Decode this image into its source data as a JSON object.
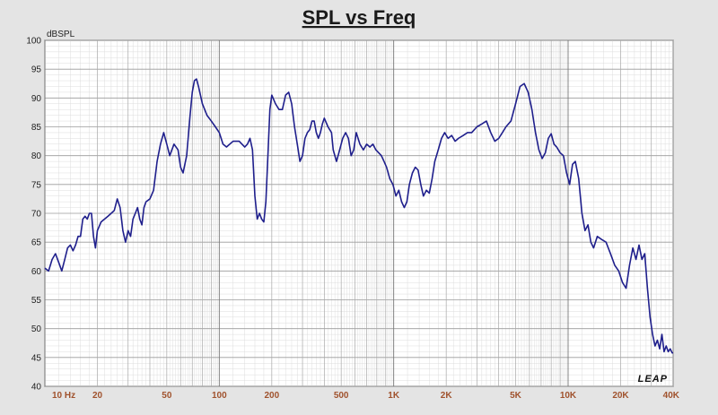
{
  "chart_data": {
    "type": "line",
    "title": "SPL vs Freq",
    "ylabel": "dBSPL",
    "xlabel": "",
    "x_scale": "log",
    "xlim": [
      10,
      40000
    ],
    "ylim": [
      40,
      100
    ],
    "y_ticks": [
      40,
      45,
      50,
      55,
      60,
      65,
      70,
      75,
      80,
      85,
      90,
      95,
      100
    ],
    "x_ticks": [
      {
        "value": 10,
        "label": "10  Hz"
      },
      {
        "value": 20,
        "label": "20"
      },
      {
        "value": 50,
        "label": "50"
      },
      {
        "value": 100,
        "label": "100"
      },
      {
        "value": 200,
        "label": "200"
      },
      {
        "value": 500,
        "label": "500"
      },
      {
        "value": 1000,
        "label": "1K"
      },
      {
        "value": 2000,
        "label": "2K"
      },
      {
        "value": 5000,
        "label": "5K"
      },
      {
        "value": 10000,
        "label": "10K"
      },
      {
        "value": 20000,
        "label": "20K"
      },
      {
        "value": 40000,
        "label": "40K"
      }
    ],
    "grid": true,
    "series": [
      {
        "color": "#1f1f8c",
        "points": [
          [
            10,
            60.5
          ],
          [
            10.5,
            60
          ],
          [
            11,
            62
          ],
          [
            11.5,
            63
          ],
          [
            12,
            61.5
          ],
          [
            12.5,
            60
          ],
          [
            13,
            62
          ],
          [
            13.5,
            64
          ],
          [
            14,
            64.5
          ],
          [
            14.5,
            63.5
          ],
          [
            15,
            64.5
          ],
          [
            15.5,
            66
          ],
          [
            16,
            66
          ],
          [
            16.5,
            69
          ],
          [
            17,
            69.5
          ],
          [
            17.5,
            69
          ],
          [
            18,
            70
          ],
          [
            18.5,
            70
          ],
          [
            19,
            66
          ],
          [
            19.5,
            64
          ],
          [
            20,
            67
          ],
          [
            21,
            68.5
          ],
          [
            22,
            69
          ],
          [
            23,
            69.5
          ],
          [
            24,
            70
          ],
          [
            25,
            70.5
          ],
          [
            26,
            72.5
          ],
          [
            27,
            71
          ],
          [
            28,
            67
          ],
          [
            29,
            65
          ],
          [
            30,
            67
          ],
          [
            31,
            66
          ],
          [
            32,
            69
          ],
          [
            33,
            70
          ],
          [
            34,
            71
          ],
          [
            35,
            69
          ],
          [
            36,
            68
          ],
          [
            37,
            71
          ],
          [
            38,
            72
          ],
          [
            40,
            72.5
          ],
          [
            42,
            74
          ],
          [
            44,
            79
          ],
          [
            46,
            82
          ],
          [
            48,
            84
          ],
          [
            50,
            82
          ],
          [
            52,
            80
          ],
          [
            55,
            82
          ],
          [
            58,
            81
          ],
          [
            60,
            78
          ],
          [
            62,
            77
          ],
          [
            65,
            80
          ],
          [
            68,
            87
          ],
          [
            70,
            91
          ],
          [
            72,
            93
          ],
          [
            74,
            93.3
          ],
          [
            76,
            92
          ],
          [
            80,
            89
          ],
          [
            85,
            87
          ],
          [
            90,
            86
          ],
          [
            95,
            85
          ],
          [
            100,
            84
          ],
          [
            105,
            82
          ],
          [
            110,
            81.5
          ],
          [
            120,
            82.5
          ],
          [
            130,
            82.5
          ],
          [
            140,
            81.5
          ],
          [
            145,
            82
          ],
          [
            150,
            83
          ],
          [
            155,
            81
          ],
          [
            160,
            73
          ],
          [
            165,
            69
          ],
          [
            170,
            70
          ],
          [
            175,
            69
          ],
          [
            180,
            68.5
          ],
          [
            185,
            72
          ],
          [
            190,
            80
          ],
          [
            195,
            88
          ],
          [
            200,
            90.5
          ],
          [
            210,
            89
          ],
          [
            220,
            88
          ],
          [
            230,
            88
          ],
          [
            240,
            90.5
          ],
          [
            250,
            91
          ],
          [
            260,
            89
          ],
          [
            270,
            85
          ],
          [
            280,
            82
          ],
          [
            290,
            79
          ],
          [
            300,
            80
          ],
          [
            310,
            83
          ],
          [
            320,
            84
          ],
          [
            330,
            84.5
          ],
          [
            340,
            86
          ],
          [
            350,
            86
          ],
          [
            360,
            84
          ],
          [
            370,
            83
          ],
          [
            380,
            84
          ],
          [
            390,
            85.5
          ],
          [
            400,
            86.5
          ],
          [
            420,
            85
          ],
          [
            440,
            84
          ],
          [
            450,
            81
          ],
          [
            470,
            79
          ],
          [
            490,
            81
          ],
          [
            510,
            83
          ],
          [
            530,
            84
          ],
          [
            550,
            83
          ],
          [
            570,
            80
          ],
          [
            590,
            81
          ],
          [
            610,
            84
          ],
          [
            640,
            82
          ],
          [
            670,
            81
          ],
          [
            700,
            82
          ],
          [
            730,
            81.5
          ],
          [
            760,
            82
          ],
          [
            790,
            81
          ],
          [
            820,
            80.5
          ],
          [
            850,
            80
          ],
          [
            880,
            79
          ],
          [
            910,
            78
          ],
          [
            950,
            76
          ],
          [
            990,
            75
          ],
          [
            1030,
            73
          ],
          [
            1070,
            74
          ],
          [
            1110,
            72
          ],
          [
            1150,
            71
          ],
          [
            1190,
            72
          ],
          [
            1230,
            75
          ],
          [
            1280,
            77
          ],
          [
            1330,
            78
          ],
          [
            1380,
            77.5
          ],
          [
            1430,
            75
          ],
          [
            1480,
            73
          ],
          [
            1540,
            74
          ],
          [
            1600,
            73.5
          ],
          [
            1660,
            76
          ],
          [
            1720,
            79
          ],
          [
            1800,
            81
          ],
          [
            1880,
            83
          ],
          [
            1960,
            84
          ],
          [
            2050,
            83
          ],
          [
            2150,
            83.5
          ],
          [
            2250,
            82.5
          ],
          [
            2350,
            83
          ],
          [
            2500,
            83.5
          ],
          [
            2650,
            84
          ],
          [
            2800,
            84
          ],
          [
            3000,
            85
          ],
          [
            3200,
            85.5
          ],
          [
            3400,
            86
          ],
          [
            3600,
            84
          ],
          [
            3800,
            82.5
          ],
          [
            4000,
            83
          ],
          [
            4200,
            84
          ],
          [
            4400,
            85
          ],
          [
            4700,
            86
          ],
          [
            5000,
            89
          ],
          [
            5300,
            92
          ],
          [
            5600,
            92.5
          ],
          [
            5900,
            91
          ],
          [
            6200,
            88
          ],
          [
            6500,
            84
          ],
          [
            6800,
            81
          ],
          [
            7100,
            79.5
          ],
          [
            7400,
            80.5
          ],
          [
            7700,
            83
          ],
          [
            8000,
            83.8
          ],
          [
            8300,
            82
          ],
          [
            8600,
            81.5
          ],
          [
            9000,
            80.5
          ],
          [
            9400,
            80
          ],
          [
            9800,
            77
          ],
          [
            10200,
            75
          ],
          [
            10600,
            78.5
          ],
          [
            11000,
            79
          ],
          [
            11500,
            76
          ],
          [
            12000,
            70
          ],
          [
            12500,
            67
          ],
          [
            13000,
            68
          ],
          [
            13500,
            65
          ],
          [
            14000,
            64
          ],
          [
            14700,
            66
          ],
          [
            15500,
            65.5
          ],
          [
            16500,
            65
          ],
          [
            17500,
            63
          ],
          [
            18500,
            61
          ],
          [
            19500,
            60
          ],
          [
            20500,
            58
          ],
          [
            21500,
            57
          ],
          [
            22500,
            61
          ],
          [
            23500,
            64
          ],
          [
            24500,
            62
          ],
          [
            25500,
            64.5
          ],
          [
            26500,
            62
          ],
          [
            27500,
            63
          ],
          [
            28500,
            57
          ],
          [
            29500,
            52
          ],
          [
            30500,
            49
          ],
          [
            31500,
            47
          ],
          [
            32500,
            48
          ],
          [
            33500,
            46.5
          ],
          [
            34500,
            49
          ],
          [
            35500,
            46
          ],
          [
            36500,
            47
          ],
          [
            37500,
            46
          ],
          [
            38500,
            46.5
          ],
          [
            39500,
            45.8
          ],
          [
            40000,
            45.8
          ]
        ]
      }
    ]
  },
  "logo_text": "LEAP"
}
